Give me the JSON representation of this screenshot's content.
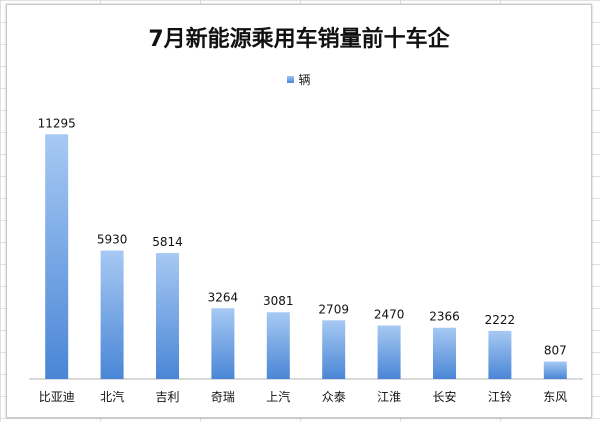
{
  "chart_data": {
    "type": "bar",
    "title": "7月新能源乘用车销量前十车企",
    "categories": [
      "比亚迪",
      "北汽",
      "吉利",
      "奇瑞",
      "上汽",
      "众泰",
      "江淮",
      "长安",
      "江铃",
      "东风"
    ],
    "series": [
      {
        "name": "辆",
        "values": [
          11295,
          5930,
          5814,
          3264,
          3081,
          2709,
          2470,
          2366,
          2222,
          807
        ]
      }
    ],
    "data_labels": [
      "11295",
      "5930",
      "5814",
      "3264",
      "3081",
      "2709",
      "2470",
      "2366",
      "2222",
      "807"
    ],
    "ylim": [
      0,
      12000
    ],
    "xlabel": "",
    "ylabel": "",
    "legend_position": "top",
    "grid": false,
    "bar_color_top": "#a7c9f3",
    "bar_color_bottom": "#4a86d6"
  }
}
